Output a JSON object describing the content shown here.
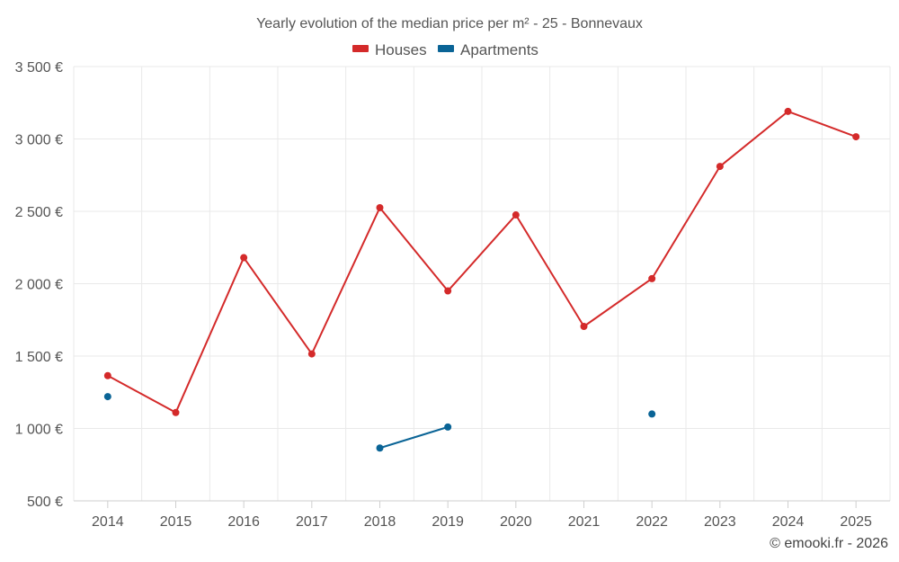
{
  "chart_data": {
    "type": "line",
    "title": "Yearly evolution of the median price per m² - 25 - Bonnevaux",
    "categories": [
      "2014",
      "2015",
      "2016",
      "2017",
      "2018",
      "2019",
      "2020",
      "2021",
      "2022",
      "2023",
      "2024",
      "2025"
    ],
    "ylim": [
      500,
      3500
    ],
    "yticks": [
      500,
      1000,
      1500,
      2000,
      2500,
      3000,
      3500
    ],
    "ytick_labels": [
      "500 €",
      "1 000 €",
      "1 500 €",
      "2 000 €",
      "2 500 €",
      "3 000 €",
      "3 500 €"
    ],
    "grid": true,
    "legend_position": "top-center",
    "series": [
      {
        "name": "Houses",
        "color": "#d42a2a",
        "values": [
          1365,
          1110,
          2180,
          1515,
          2525,
          1950,
          2475,
          1705,
          2035,
          2810,
          3190,
          3015
        ]
      },
      {
        "name": "Apartments",
        "color": "#0a6496",
        "values": [
          1220,
          null,
          null,
          null,
          865,
          1010,
          null,
          null,
          1100,
          null,
          null,
          null
        ]
      }
    ]
  },
  "credit": "© emooki.fr - 2026"
}
